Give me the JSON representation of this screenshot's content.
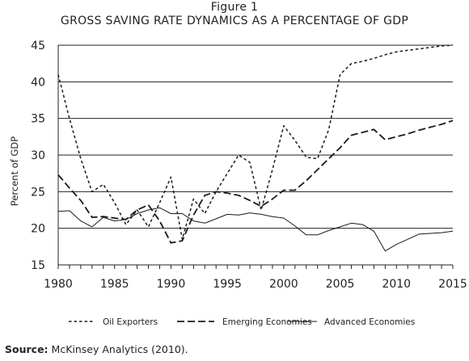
{
  "figure_label": "Figure 1",
  "source": {
    "label": "Source:",
    "text": "McKinsey Analytics (2010)."
  },
  "chart_data": {
    "type": "line",
    "title": "GROSS SAVING RATE DYNAMICS AS A PERCENTAGE OF GDP",
    "xlabel": "",
    "ylabel": "Percent of GDP",
    "xlim": [
      1980,
      2015
    ],
    "ylim": [
      15,
      45
    ],
    "xticks": [
      1980,
      1985,
      1990,
      1995,
      2000,
      2005,
      2010,
      2015
    ],
    "yticks": [
      15,
      20,
      25,
      30,
      35,
      40,
      45
    ],
    "grid": "horizontal",
    "legend_position": "bottom",
    "series": [
      {
        "name": "Oil Exporters",
        "style": "dotted",
        "x": [
          1980,
          1981,
          1982,
          1983,
          1984,
          1985,
          1986,
          1987,
          1988,
          1989,
          1990,
          1991,
          1992,
          1993,
          1994,
          1995,
          1996,
          1997,
          1998,
          1999,
          2000,
          2001,
          2002,
          2003,
          2004,
          2005,
          2006,
          2007,
          2008,
          2009,
          2010,
          2011,
          2012,
          2013,
          2014,
          2015
        ],
        "values": [
          41,
          35,
          29.5,
          25,
          26,
          23.5,
          20.5,
          22.5,
          20.2,
          23.5,
          27,
          18.5,
          24,
          22,
          25,
          27.5,
          30,
          29,
          22.5,
          28,
          34,
          32,
          29.7,
          29.5,
          33.5,
          41,
          42.5,
          42.8,
          43.2,
          43.7,
          44.1,
          44.3,
          44.5,
          44.7,
          44.9,
          45
        ]
      },
      {
        "name": "Emerging Economies",
        "style": "dashed",
        "x": [
          1980,
          1981,
          1982,
          1983,
          1984,
          1985,
          1986,
          1987,
          1988,
          1989,
          1990,
          1991,
          1992,
          1993,
          1994,
          1995,
          1996,
          1997,
          1998,
          1999,
          2000,
          2001,
          2002,
          2003,
          2004,
          2005,
          2006,
          2007,
          2008,
          2009,
          2010,
          2011,
          2012,
          2013,
          2014,
          2015
        ],
        "values": [
          27.3,
          25.5,
          23.8,
          21.5,
          21.6,
          21.4,
          21.2,
          22.5,
          23.2,
          21,
          18,
          18.3,
          21.8,
          24.5,
          25,
          24.8,
          24.5,
          23.8,
          23,
          24,
          25.2,
          25.2,
          26.5,
          28,
          29.5,
          31,
          32.7,
          33.1,
          33.5,
          32.1,
          32.5,
          32.9,
          33.4,
          33.8,
          34.2,
          34.7
        ]
      },
      {
        "name": "Advanced Economies",
        "style": "solid",
        "x": [
          1980,
          1981,
          1982,
          1983,
          1984,
          1985,
          1986,
          1987,
          1988,
          1989,
          1990,
          1991,
          1992,
          1993,
          1994,
          1995,
          1996,
          1997,
          1998,
          1999,
          2000,
          2001,
          2002,
          2003,
          2004,
          2005,
          2006,
          2007,
          2008,
          2009,
          2010,
          2011,
          2012,
          2013,
          2014,
          2015
        ],
        "values": [
          22.3,
          22.4,
          21,
          20.2,
          21.5,
          21,
          21.2,
          22,
          22.5,
          22.8,
          22,
          22,
          21,
          20.7,
          21.3,
          21.9,
          21.8,
          22.1,
          21.9,
          21.6,
          21.4,
          20.3,
          19.1,
          19.1,
          19.7,
          20.2,
          20.7,
          20.5,
          19.6,
          16.9,
          17.8,
          18.5,
          19.2,
          19.3,
          19.4,
          19.6
        ]
      }
    ]
  }
}
